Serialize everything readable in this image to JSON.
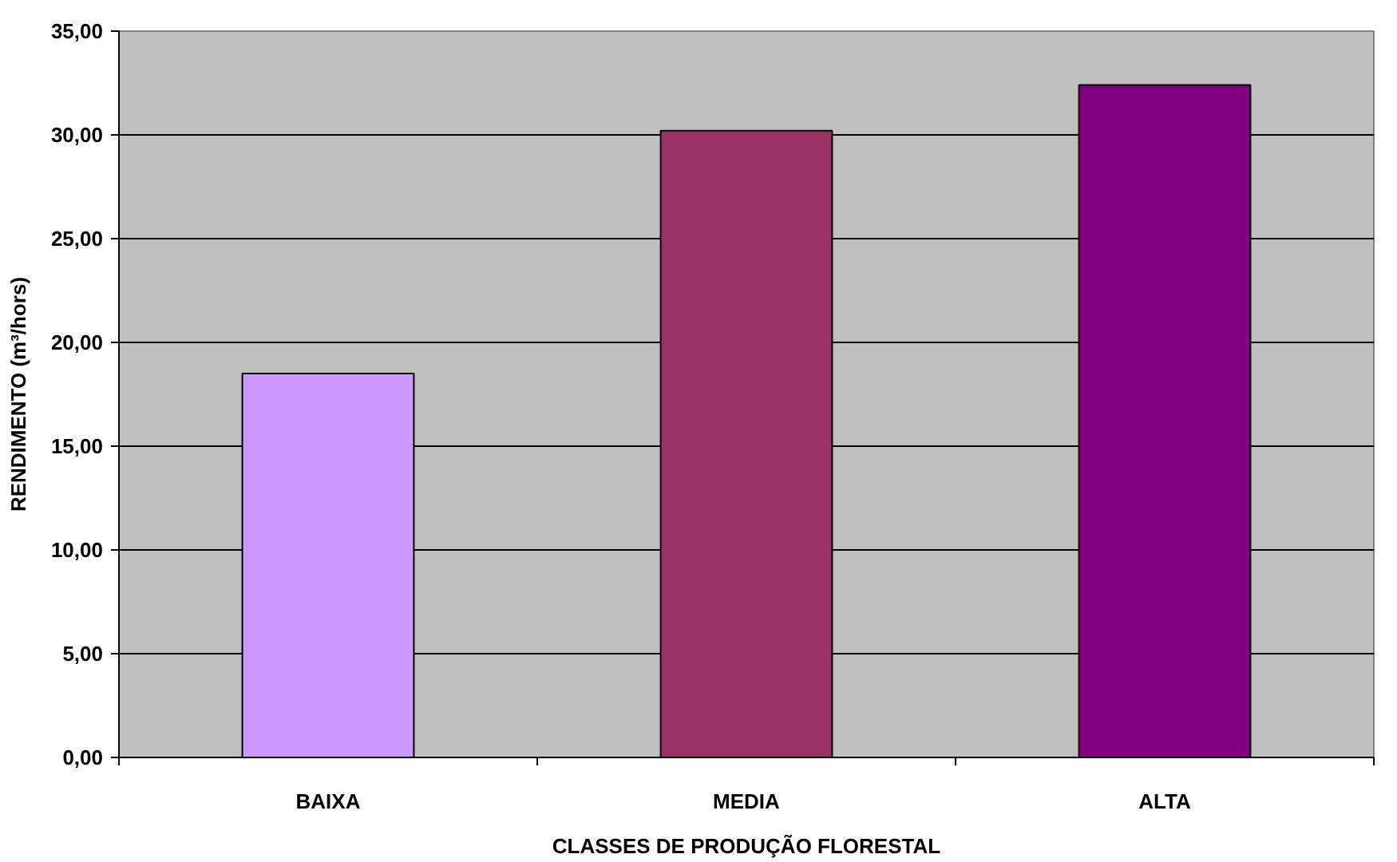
{
  "chart_data": {
    "type": "bar",
    "xlabel": "CLASSES DE PRODUÇÃO FLORESTAL",
    "ylabel": "RENDIMENTO (m³/hors)",
    "categories": [
      "BAIXA",
      "MEDIA",
      "ALTA"
    ],
    "values": [
      18.5,
      30.2,
      32.4
    ],
    "colors": [
      "#cc99ff",
      "#993366",
      "#800080"
    ],
    "ylim": [
      0,
      35
    ],
    "yticks": [
      {
        "value": 0,
        "label": "0,00"
      },
      {
        "value": 5,
        "label": "5,00"
      },
      {
        "value": 10,
        "label": "10,00"
      },
      {
        "value": 15,
        "label": "15,00"
      },
      {
        "value": 20,
        "label": "20,00"
      },
      {
        "value": 25,
        "label": "25,00"
      },
      {
        "value": 30,
        "label": "30,00"
      },
      {
        "value": 35,
        "label": "35,00"
      }
    ],
    "grid": "y"
  }
}
